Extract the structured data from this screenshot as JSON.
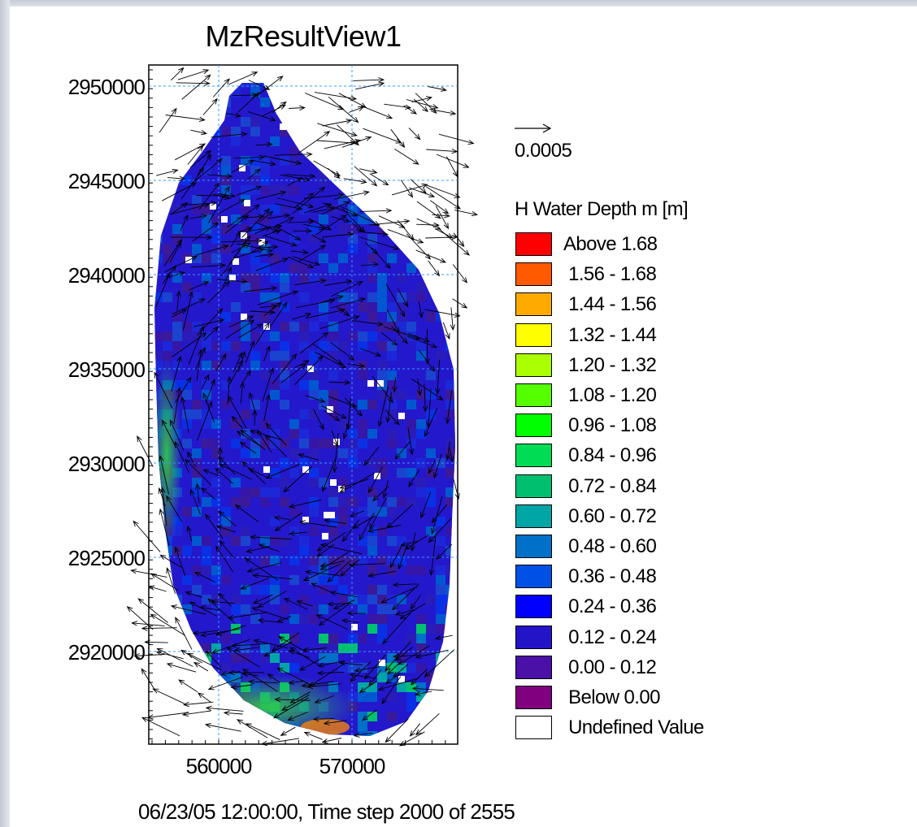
{
  "title": "MzResultView1",
  "map_data": {
    "x_ticks": [
      "560000",
      "570000"
    ],
    "y_ticks": [
      "2950000",
      "2945000",
      "2940000",
      "2935000",
      "2930000",
      "2925000",
      "2920000"
    ],
    "x_range": [
      555000,
      577000
    ],
    "y_range": [
      2915000,
      2951000
    ],
    "dominant_class": "0.12 - 0.24",
    "vector_overlay": "current velocity arrows"
  },
  "vector_scale": {
    "label": "0.0005"
  },
  "legend": {
    "title": "H Water Depth m [m]",
    "items": [
      {
        "label": "Above 1.68",
        "color": "#ff0000"
      },
      {
        "label": " 1.56 - 1.68",
        "color": "#ff5a00"
      },
      {
        "label": " 1.44 - 1.56",
        "color": "#ffaa00"
      },
      {
        "label": " 1.32 - 1.44",
        "color": "#ffff00"
      },
      {
        "label": " 1.20 - 1.32",
        "color": "#aaff00"
      },
      {
        "label": " 1.08 - 1.20",
        "color": "#55ff00"
      },
      {
        "label": " 0.96 - 1.08",
        "color": "#00ff00"
      },
      {
        "label": " 0.84 - 0.96",
        "color": "#00dd55"
      },
      {
        "label": " 0.72 - 0.84",
        "color": "#00c070"
      },
      {
        "label": " 0.60 - 0.72",
        "color": "#00a5a5"
      },
      {
        "label": " 0.48 - 0.60",
        "color": "#0070c8"
      },
      {
        "label": " 0.36 - 0.48",
        "color": "#0050e6"
      },
      {
        "label": " 0.24 - 0.36",
        "color": "#0000ff"
      },
      {
        "label": " 0.12 - 0.24",
        "color": "#2414c8"
      },
      {
        "label": " 0.00 - 0.12",
        "color": "#4a10a8"
      },
      {
        "label": " Below 0.00",
        "color": "#800080"
      },
      {
        "label": " Undefined Value",
        "color": "#ffffff"
      }
    ]
  },
  "footer": "06/23/05 12:00:00, Time step 2000 of 2555"
}
